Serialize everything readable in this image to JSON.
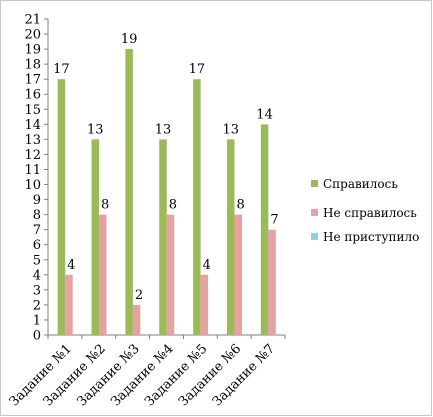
{
  "chart_data": {
    "type": "bar",
    "categories": [
      "Задание №1",
      "Задание №2",
      "Задание №3",
      "Задание №4",
      "Задание №5",
      "Задание №6",
      "Задание №7"
    ],
    "series": [
      {
        "name": "Справилось",
        "values": [
          17,
          13,
          19,
          13,
          17,
          13,
          14
        ],
        "color": "#9bbb59"
      },
      {
        "name": "Не справилось",
        "values": [
          4,
          8,
          2,
          8,
          4,
          8,
          7
        ],
        "color": "#e6a1a1"
      },
      {
        "name": "Не приступило",
        "values": [
          0,
          0,
          0,
          0,
          0,
          0,
          0
        ],
        "color": "#8ecdf0"
      }
    ],
    "ylim": [
      0,
      21
    ],
    "yticks": [
      0,
      1,
      2,
      3,
      4,
      5,
      6,
      7,
      8,
      9,
      10,
      11,
      12,
      13,
      14,
      15,
      16,
      17,
      18,
      19,
      20,
      21
    ],
    "grid": false,
    "legend": "right",
    "data_labels": true
  }
}
